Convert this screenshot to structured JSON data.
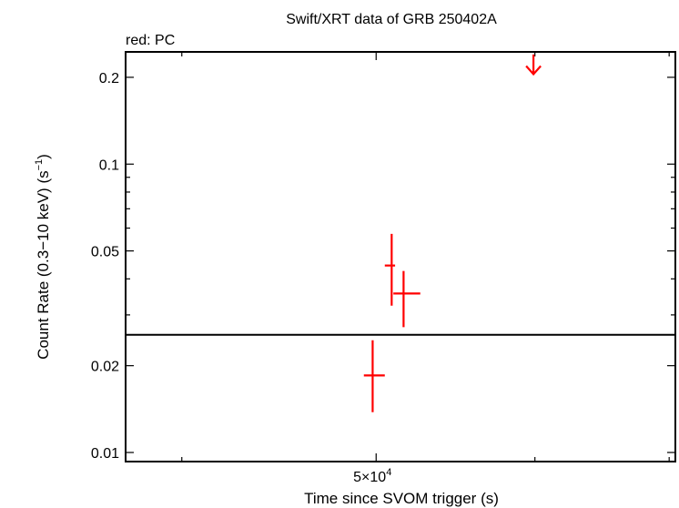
{
  "chart_data": {
    "type": "scatter",
    "title": "Swift/XRT data of GRB 250402A",
    "subtitle": "red: PC",
    "xlabel": "Time since SVOM trigger (s)",
    "ylabel": "Count Rate (0.3−10 keV) (s",
    "ylabel_sup": "−1",
    "ylabel_end": ")",
    "x_scale": "log",
    "y_scale": "log",
    "xlim": [
      37500,
      70500
    ],
    "ylim": [
      0.0093,
      0.245
    ],
    "x_ticks": [
      {
        "value": 50000,
        "label": "5×10",
        "sup": "4"
      }
    ],
    "x_minor_ticks": [
      40000,
      60000,
      70000
    ],
    "y_ticks": [
      {
        "value": 0.01,
        "label": "0.01"
      },
      {
        "value": 0.02,
        "label": "0.02"
      },
      {
        "value": 0.05,
        "label": "0.05"
      },
      {
        "value": 0.1,
        "label": "0.1"
      },
      {
        "value": 0.2,
        "label": "0.2"
      }
    ],
    "y_minor_ticks": [
      0.03,
      0.04,
      0.06,
      0.07,
      0.08,
      0.09
    ],
    "reference_line_y": 0.0256,
    "series_color": "#ff0000",
    "points": [
      {
        "x": 49800,
        "y": 0.0185,
        "xerr_lo": 49300,
        "xerr_hi": 50500,
        "yerr_lo": 0.0138,
        "yerr_hi": 0.0245
      },
      {
        "x": 50900,
        "y": 0.0445,
        "xerr_lo": 50500,
        "xerr_hi": 51100,
        "yerr_lo": 0.0323,
        "yerr_hi": 0.0573
      },
      {
        "x": 51600,
        "y": 0.0356,
        "xerr_lo": 51000,
        "xerr_hi": 52600,
        "yerr_lo": 0.0272,
        "yerr_hi": 0.0426
      }
    ],
    "upper_limits": [
      {
        "x": 59900,
        "y": 0.205,
        "y_top": 0.24
      }
    ]
  }
}
